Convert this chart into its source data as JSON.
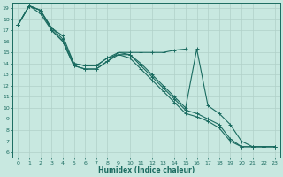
{
  "xlabel": "Humidex (Indice chaleur)",
  "background_color": "#c8e8e0",
  "grid_color": "#b0d0c8",
  "line_color": "#1a6b60",
  "xlim": [
    -0.5,
    23.5
  ],
  "ylim": [
    5.5,
    19.5
  ],
  "xticks": [
    0,
    1,
    2,
    3,
    4,
    5,
    6,
    7,
    8,
    9,
    10,
    11,
    12,
    13,
    14,
    15,
    16,
    17,
    18,
    19,
    20,
    21,
    22,
    23
  ],
  "yticks": [
    6,
    7,
    8,
    9,
    10,
    11,
    12,
    13,
    14,
    15,
    16,
    17,
    18,
    19
  ],
  "series": [
    [
      17.5,
      19.2,
      18.8,
      17.0,
      16.0,
      13.8,
      13.5,
      13.5,
      14.2,
      15.0,
      15.0,
      15.0,
      15.0,
      15.0,
      15.2,
      15.3,
      null,
      null,
      null,
      null,
      null,
      null,
      null,
      null
    ],
    [
      17.5,
      19.2,
      18.5,
      17.0,
      16.0,
      13.8,
      13.5,
      13.5,
      14.2,
      14.8,
      14.8,
      14.0,
      13.0,
      12.0,
      11.0,
      10.0,
      15.3,
      10.2,
      9.5,
      8.5,
      7.0,
      6.5,
      6.5,
      6.5
    ],
    [
      17.5,
      19.2,
      18.8,
      17.2,
      16.5,
      14.0,
      13.8,
      13.8,
      14.5,
      15.0,
      14.8,
      13.8,
      12.8,
      11.8,
      10.8,
      9.8,
      9.5,
      9.0,
      8.5,
      7.2,
      6.5,
      6.5,
      6.5,
      6.5
    ],
    [
      17.5,
      19.2,
      18.8,
      17.2,
      16.2,
      14.0,
      13.8,
      13.8,
      14.5,
      14.8,
      14.5,
      13.5,
      12.5,
      11.5,
      10.5,
      9.5,
      9.2,
      8.8,
      8.2,
      7.0,
      6.5,
      6.5,
      6.5,
      6.5
    ]
  ]
}
